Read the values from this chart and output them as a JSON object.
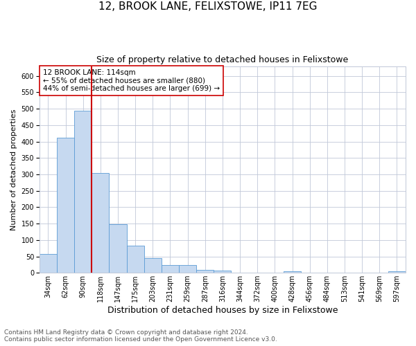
{
  "title": "12, BROOK LANE, FELIXSTOWE, IP11 7EG",
  "subtitle": "Size of property relative to detached houses in Felixstowe",
  "xlabel": "Distribution of detached houses by size in Felixstowe",
  "ylabel": "Number of detached properties",
  "categories": [
    "34sqm",
    "62sqm",
    "90sqm",
    "118sqm",
    "147sqm",
    "175sqm",
    "203sqm",
    "231sqm",
    "259sqm",
    "287sqm",
    "316sqm",
    "344sqm",
    "372sqm",
    "400sqm",
    "428sqm",
    "456sqm",
    "484sqm",
    "513sqm",
    "541sqm",
    "569sqm",
    "597sqm"
  ],
  "values": [
    57,
    412,
    494,
    305,
    148,
    82,
    44,
    24,
    24,
    10,
    7,
    0,
    0,
    0,
    5,
    0,
    0,
    0,
    0,
    0,
    4
  ],
  "bar_color": "#c6d9f0",
  "bar_edge_color": "#5b9bd5",
  "vline_color": "#cc0000",
  "annotation_text": "12 BROOK LANE: 114sqm\n← 55% of detached houses are smaller (880)\n44% of semi-detached houses are larger (699) →",
  "ylim": [
    0,
    630
  ],
  "footnote1": "Contains HM Land Registry data © Crown copyright and database right 2024.",
  "footnote2": "Contains public sector information licensed under the Open Government Licence v3.0.",
  "title_fontsize": 11,
  "subtitle_fontsize": 9,
  "xlabel_fontsize": 9,
  "ylabel_fontsize": 8,
  "tick_fontsize": 7,
  "annotation_fontsize": 7.5,
  "footnote_fontsize": 6.5,
  "background_color": "#ffffff",
  "grid_color": "#c0c8d8"
}
